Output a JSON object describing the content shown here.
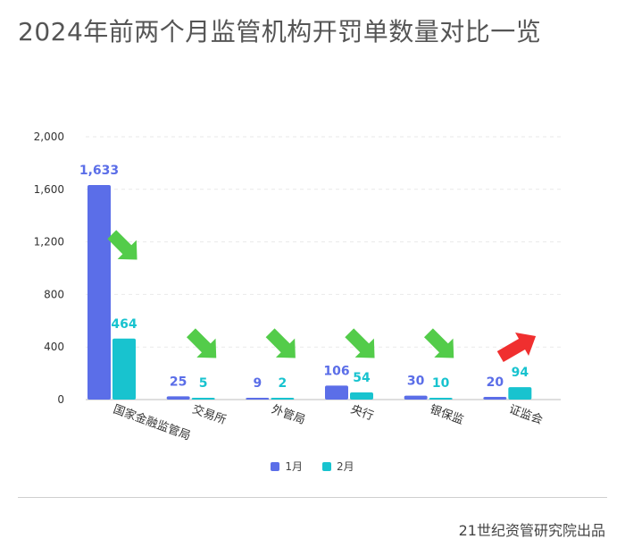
{
  "title": "2024年前两个月监管机构开罚单数量对比一览",
  "credit": "21世纪资管研究院出品",
  "colors": {
    "series1": "#5b6ee8",
    "series2": "#18c3cf",
    "arrow_down": "#53cc4a",
    "arrow_up": "#f02f2f"
  },
  "chart_data": {
    "type": "bar",
    "categories": [
      "国家金融监管局",
      "交易所",
      "外管局",
      "央行",
      "银保监",
      "证监会"
    ],
    "series": [
      {
        "name": "1月",
        "values": [
          1633,
          25,
          9,
          106,
          30,
          20
        ],
        "labels": [
          "1,633",
          "25",
          "9",
          "106",
          "30",
          "20"
        ]
      },
      {
        "name": "2月",
        "values": [
          464,
          5,
          2,
          54,
          10,
          94
        ],
        "labels": [
          "464",
          "5",
          "2",
          "54",
          "10",
          "94"
        ]
      }
    ],
    "yticks": [
      "0",
      "400",
      "800",
      "1,200",
      "1,600",
      "2,000"
    ],
    "ylim": [
      0,
      2000
    ],
    "grid": true,
    "legend_position": "bottom",
    "trend_arrows": [
      "down",
      "down",
      "down",
      "down",
      "down",
      "up"
    ]
  }
}
